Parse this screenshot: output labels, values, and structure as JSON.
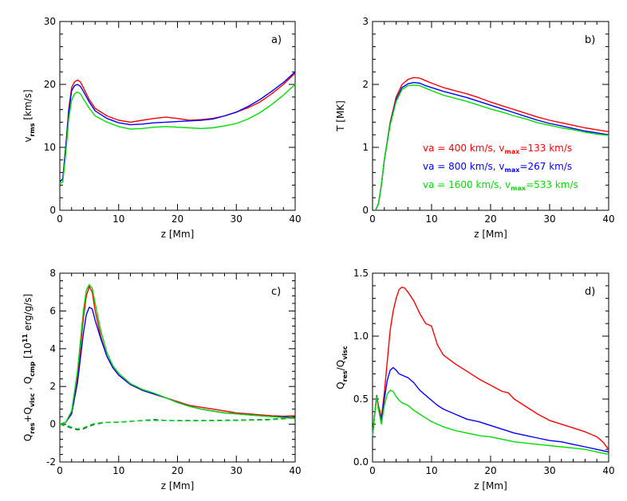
{
  "colors": {
    "red": "#ff0000",
    "blue": "#0000ff",
    "green": "#00dd00",
    "dashed": "#006060"
  },
  "legend": [
    {
      "text": "va = 400 km/s, v",
      "sub": "max",
      "suffix": "=133 km/s",
      "color": "#ff0000"
    },
    {
      "text": "va = 800 km/s, v",
      "sub": "max",
      "suffix": "=267 km/s",
      "color": "#0000ff"
    },
    {
      "text": "va = 1600 km/s, v",
      "sub": "max",
      "suffix": "=533 km/s",
      "color": "#00dd00"
    }
  ],
  "chart_data": [
    {
      "type": "line",
      "tag": "a)",
      "xlabel": "z [Mm]",
      "ylabel": "v",
      "ylabel_sub": "rms",
      "ylabel_suffix": " [km/s]",
      "xlim": [
        0,
        40
      ],
      "ylim": [
        0,
        30
      ],
      "xticks": [
        0,
        10,
        20,
        30,
        40
      ],
      "yticks": [
        0,
        10,
        20,
        30
      ],
      "series": [
        {
          "name": "va=400",
          "color": "#ff0000",
          "x": [
            0,
            0.5,
            1,
            1.5,
            2,
            2.5,
            3,
            3.5,
            4,
            5,
            6,
            8,
            10,
            12,
            14,
            16,
            18,
            20,
            22,
            24,
            26,
            28,
            30,
            32,
            34,
            36,
            38,
            40
          ],
          "y": [
            4.5,
            5,
            10,
            16,
            19.5,
            20.4,
            20.7,
            20.4,
            19.5,
            17.6,
            16.2,
            15,
            14.3,
            14,
            14.3,
            14.6,
            14.8,
            14.6,
            14.3,
            14.4,
            14.6,
            15,
            15.6,
            16.3,
            17.2,
            18.5,
            20,
            21.8
          ]
        },
        {
          "name": "va=800",
          "color": "#0000ff",
          "x": [
            0,
            0.5,
            1,
            1.5,
            2,
            2.5,
            3,
            3.5,
            4,
            5,
            6,
            8,
            10,
            12,
            14,
            16,
            18,
            20,
            22,
            24,
            26,
            28,
            30,
            32,
            34,
            36,
            38,
            40
          ],
          "y": [
            4.5,
            5,
            10,
            15.5,
            19,
            19.8,
            20,
            19.7,
            18.9,
            17.2,
            15.8,
            14.6,
            13.9,
            13.6,
            13.7,
            13.9,
            14,
            14.1,
            14.2,
            14.3,
            14.5,
            15,
            15.6,
            16.5,
            17.6,
            18.9,
            20.3,
            22
          ]
        },
        {
          "name": "va=1600",
          "color": "#00dd00",
          "x": [
            0,
            0.5,
            1,
            1.5,
            2,
            2.5,
            3,
            3.5,
            4,
            5,
            6,
            8,
            10,
            12,
            14,
            16,
            18,
            20,
            22,
            24,
            26,
            28,
            30,
            32,
            34,
            36,
            38,
            40
          ],
          "y": [
            4.2,
            4.5,
            9,
            14.5,
            17.5,
            18.5,
            18.8,
            18.5,
            17.7,
            16.2,
            15,
            14,
            13.3,
            12.9,
            13,
            13.2,
            13.3,
            13.2,
            13.1,
            13,
            13.1,
            13.4,
            13.8,
            14.5,
            15.5,
            16.8,
            18.3,
            20
          ]
        }
      ]
    },
    {
      "type": "line",
      "tag": "b)",
      "xlabel": "z [Mm]",
      "ylabel": "T [MK]",
      "ylabel_sub": "",
      "ylabel_suffix": "",
      "xlim": [
        0,
        40
      ],
      "ylim": [
        0,
        3
      ],
      "xticks": [
        0,
        10,
        20,
        30,
        40
      ],
      "yticks": [
        0,
        1,
        2,
        3
      ],
      "series": [
        {
          "name": "va=400",
          "color": "#ff0000",
          "x": [
            0.5,
            1,
            1.5,
            2,
            3,
            4,
            5,
            6,
            7,
            8,
            9,
            10,
            12,
            14,
            16,
            18,
            20,
            22,
            24,
            26,
            28,
            30,
            32,
            34,
            36,
            38,
            40
          ],
          "y": [
            0,
            0.1,
            0.4,
            0.8,
            1.4,
            1.8,
            2.0,
            2.08,
            2.11,
            2.1,
            2.06,
            2.02,
            1.95,
            1.9,
            1.85,
            1.79,
            1.72,
            1.66,
            1.6,
            1.54,
            1.48,
            1.43,
            1.39,
            1.35,
            1.31,
            1.28,
            1.25
          ]
        },
        {
          "name": "va=800",
          "color": "#0000ff",
          "x": [
            0.5,
            1,
            1.5,
            2,
            3,
            4,
            5,
            6,
            7,
            8,
            9,
            10,
            12,
            14,
            16,
            18,
            20,
            22,
            24,
            26,
            28,
            30,
            32,
            34,
            36,
            38,
            40
          ],
          "y": [
            0,
            0.1,
            0.4,
            0.8,
            1.38,
            1.76,
            1.95,
            2.01,
            2.03,
            2.02,
            1.98,
            1.95,
            1.89,
            1.84,
            1.79,
            1.73,
            1.67,
            1.61,
            1.55,
            1.49,
            1.43,
            1.38,
            1.34,
            1.3,
            1.26,
            1.23,
            1.2
          ]
        },
        {
          "name": "va=1600",
          "color": "#00dd00",
          "x": [
            0.5,
            1,
            1.5,
            2,
            3,
            4,
            5,
            6,
            7,
            8,
            9,
            10,
            12,
            14,
            16,
            18,
            20,
            22,
            24,
            26,
            28,
            30,
            32,
            34,
            36,
            38,
            40
          ],
          "y": [
            0,
            0.1,
            0.4,
            0.8,
            1.36,
            1.73,
            1.92,
            1.98,
            1.99,
            1.98,
            1.94,
            1.9,
            1.83,
            1.78,
            1.73,
            1.67,
            1.61,
            1.56,
            1.5,
            1.45,
            1.39,
            1.35,
            1.31,
            1.28,
            1.24,
            1.21,
            1.19
          ]
        }
      ]
    },
    {
      "type": "line",
      "tag": "c)",
      "xlabel": "z [Mm]",
      "ylabel": "Q",
      "ylabel_sub": "res",
      "ylabel_parts": [
        "Q",
        "res",
        "+Q",
        "visc",
        " , Q",
        "cmp",
        " [10",
        "11",
        " erg/g/s]"
      ],
      "ylabel_suffix": "",
      "xlim": [
        0,
        40
      ],
      "ylim": [
        -2,
        8
      ],
      "xticks": [
        0,
        10,
        20,
        30,
        40
      ],
      "yticks": [
        -2,
        0,
        2,
        4,
        6,
        8
      ],
      "series": [
        {
          "name": "va=400",
          "color": "#ff0000",
          "dash": false,
          "x": [
            0,
            1,
            2,
            3,
            4,
            4.5,
            5,
            5.5,
            6,
            7,
            8,
            9,
            10,
            12,
            14,
            16,
            18,
            20,
            22,
            24,
            26,
            28,
            30,
            32,
            34,
            36,
            38,
            40
          ],
          "y": [
            0,
            0.1,
            0.6,
            2.5,
            5.6,
            6.8,
            7.3,
            7.0,
            6.0,
            4.6,
            3.6,
            3.0,
            2.6,
            2.1,
            1.8,
            1.6,
            1.4,
            1.2,
            1.0,
            0.9,
            0.8,
            0.7,
            0.6,
            0.55,
            0.5,
            0.45,
            0.42,
            0.45
          ]
        },
        {
          "name": "va=800",
          "color": "#0000ff",
          "dash": false,
          "x": [
            0,
            1,
            2,
            3,
            4,
            4.5,
            5,
            5.5,
            6,
            7,
            8,
            9,
            10,
            12,
            14,
            16,
            18,
            20,
            22,
            24,
            26,
            28,
            30,
            32,
            34,
            36,
            38,
            40
          ],
          "y": [
            0,
            0.1,
            0.55,
            2.2,
            4.8,
            5.8,
            6.2,
            6.1,
            5.5,
            4.5,
            3.6,
            3.0,
            2.6,
            2.1,
            1.8,
            1.6,
            1.4,
            1.15,
            0.95,
            0.8,
            0.7,
            0.6,
            0.55,
            0.5,
            0.45,
            0.4,
            0.38,
            0.35
          ]
        },
        {
          "name": "va=1600",
          "color": "#00dd00",
          "dash": false,
          "x": [
            0,
            1,
            2,
            3,
            4,
            4.5,
            5,
            5.5,
            6,
            7,
            8,
            9,
            10,
            12,
            14,
            16,
            18,
            20,
            22,
            24,
            26,
            28,
            30,
            32,
            34,
            36,
            38,
            40
          ],
          "y": [
            0,
            0.1,
            0.7,
            2.8,
            6.0,
            7.1,
            7.4,
            7.2,
            6.4,
            4.9,
            3.8,
            3.1,
            2.7,
            2.15,
            1.85,
            1.65,
            1.4,
            1.15,
            0.95,
            0.8,
            0.7,
            0.6,
            0.55,
            0.5,
            0.45,
            0.4,
            0.35,
            0.3
          ]
        },
        {
          "name": "cmp-400",
          "color": "#006060",
          "dash": true,
          "x": [
            0,
            1,
            2,
            3,
            4,
            5,
            6,
            8,
            10,
            12,
            14,
            16,
            18,
            20,
            25,
            30,
            35,
            38,
            40
          ],
          "y": [
            0,
            -0.1,
            -0.2,
            -0.3,
            -0.25,
            -0.1,
            0.0,
            0.1,
            0.1,
            0.15,
            0.2,
            0.25,
            0.2,
            0.2,
            0.2,
            0.22,
            0.25,
            0.3,
            0.4
          ]
        },
        {
          "name": "cmp-1600",
          "color": "#00dd00",
          "dash": true,
          "x": [
            0,
            1,
            2,
            3,
            4,
            5,
            6,
            8,
            10,
            12,
            14,
            16,
            18,
            20,
            25,
            30,
            35,
            38,
            40
          ],
          "y": [
            0,
            -0.05,
            -0.15,
            -0.25,
            -0.2,
            -0.05,
            0.05,
            0.1,
            0.12,
            0.15,
            0.2,
            0.2,
            0.2,
            0.18,
            0.18,
            0.2,
            0.22,
            0.28,
            0.35
          ]
        }
      ]
    },
    {
      "type": "line",
      "tag": "d)",
      "xlabel": "z [Mm]",
      "ylabel": "Q",
      "ylabel_parts": [
        "Q",
        "res",
        "/Q",
        "visc"
      ],
      "ylabel_suffix": "",
      "xlim": [
        0,
        40
      ],
      "ylim": [
        0,
        1.5
      ],
      "xticks": [
        0,
        10,
        20,
        30,
        40
      ],
      "yticks": [
        0.0,
        0.5,
        1.0,
        1.5
      ],
      "series": [
        {
          "name": "va=400",
          "color": "#ff0000",
          "x": [
            0,
            0.3,
            0.7,
            1,
            1.5,
            2,
            2.5,
            3,
            3.5,
            4,
            4.5,
            5,
            5.5,
            6,
            7,
            8,
            9,
            10,
            11,
            12,
            14,
            16,
            18,
            20,
            22,
            23,
            24,
            26,
            28,
            30,
            32,
            34,
            36,
            38,
            39,
            40
          ],
          "y": [
            0.2,
            0.35,
            0.53,
            0.45,
            0.35,
            0.55,
            0.8,
            1.05,
            1.2,
            1.3,
            1.37,
            1.39,
            1.38,
            1.35,
            1.28,
            1.18,
            1.1,
            1.08,
            0.93,
            0.85,
            0.78,
            0.72,
            0.66,
            0.61,
            0.56,
            0.55,
            0.5,
            0.44,
            0.38,
            0.33,
            0.3,
            0.27,
            0.24,
            0.2,
            0.16,
            0.1
          ]
        },
        {
          "name": "va=800",
          "color": "#0000ff",
          "x": [
            0,
            0.3,
            0.7,
            1,
            1.5,
            2,
            2.5,
            3,
            3.5,
            4,
            4.5,
            5,
            5.5,
            6,
            7,
            8,
            9,
            10,
            11,
            12,
            14,
            16,
            18,
            20,
            22,
            24,
            26,
            28,
            30,
            32,
            34,
            36,
            38,
            40
          ],
          "y": [
            0.2,
            0.35,
            0.52,
            0.42,
            0.33,
            0.5,
            0.65,
            0.73,
            0.75,
            0.73,
            0.7,
            0.69,
            0.68,
            0.67,
            0.63,
            0.57,
            0.53,
            0.49,
            0.45,
            0.42,
            0.38,
            0.34,
            0.32,
            0.29,
            0.26,
            0.23,
            0.21,
            0.19,
            0.17,
            0.16,
            0.14,
            0.12,
            0.1,
            0.08
          ]
        },
        {
          "name": "va=1600",
          "color": "#00dd00",
          "x": [
            0,
            0.3,
            0.7,
            1,
            1.5,
            2,
            2.5,
            3,
            3.5,
            4,
            4.5,
            5,
            5.5,
            6,
            7,
            8,
            9,
            10,
            11,
            12,
            14,
            16,
            18,
            20,
            22,
            24,
            26,
            28,
            30,
            32,
            34,
            36,
            38,
            40
          ],
          "y": [
            0.2,
            0.35,
            0.52,
            0.42,
            0.3,
            0.45,
            0.54,
            0.57,
            0.56,
            0.52,
            0.49,
            0.47,
            0.46,
            0.45,
            0.41,
            0.38,
            0.35,
            0.32,
            0.3,
            0.28,
            0.25,
            0.23,
            0.21,
            0.2,
            0.18,
            0.16,
            0.15,
            0.14,
            0.13,
            0.12,
            0.11,
            0.1,
            0.08,
            0.06
          ]
        }
      ]
    }
  ]
}
